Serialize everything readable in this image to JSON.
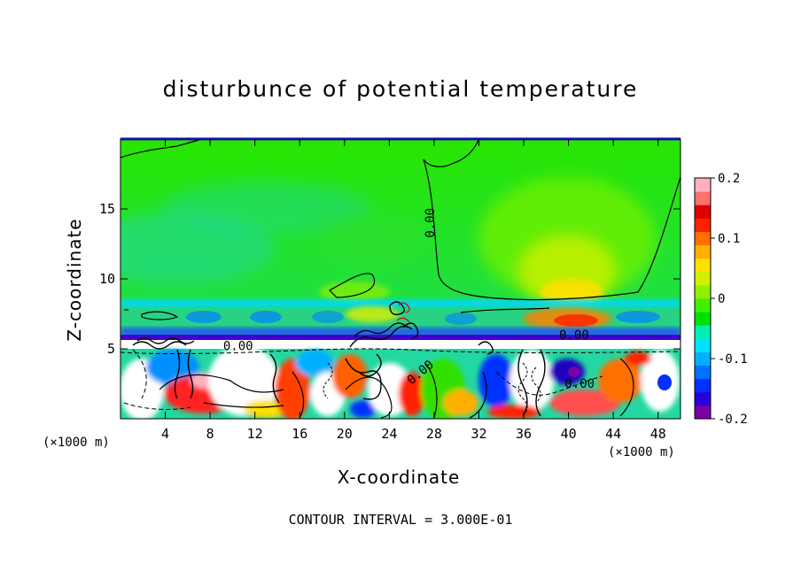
{
  "chart_data": {
    "type": "heatmap",
    "title": "disturbunce of potential temperature",
    "xlabel": "X-coordinate",
    "ylabel": "Z-coordinate",
    "x_unit": "(×1000 m)",
    "x_ticks": [
      4,
      8,
      12,
      16,
      20,
      24,
      28,
      32,
      36,
      40,
      44,
      48
    ],
    "y_ticks": [
      5,
      10,
      15
    ],
    "xlim": [
      0,
      50
    ],
    "ylim": [
      0,
      20
    ],
    "colorbar": {
      "ticks": [
        "0.2",
        "0.1",
        "0",
        "-0.1",
        "-0.2"
      ],
      "values": [
        0.2,
        0.1,
        0,
        -0.1,
        -0.2
      ],
      "range": [
        -0.2,
        0.2
      ],
      "colors": [
        "#7a00a8",
        "#2b00d8",
        "#0030ff",
        "#0070ff",
        "#00b0ff",
        "#00e0ff",
        "#00f0b0",
        "#00e000",
        "#40f000",
        "#90f000",
        "#d0f000",
        "#ffe000",
        "#ffb000",
        "#ff7000",
        "#ff2000",
        "#e00000",
        "#ff7070",
        "#ffb0c0"
      ]
    },
    "contour_labels": [
      {
        "text": "0.00",
        "x": 28.0,
        "z": 14.0,
        "rotate": -90
      },
      {
        "text": "0.00",
        "x": 10.5,
        "z": 4.9,
        "rotate": 0
      },
      {
        "text": "0.00",
        "x": 40.5,
        "z": 5.7,
        "rotate": 0
      },
      {
        "text": "0.00",
        "x": 27.0,
        "z": 3.1,
        "rotate": -40
      },
      {
        "text": "0.00",
        "x": 41.0,
        "z": 2.2,
        "rotate": 0
      }
    ],
    "annotation": "CONTOUR INTERVAL = 3.000E-01"
  }
}
